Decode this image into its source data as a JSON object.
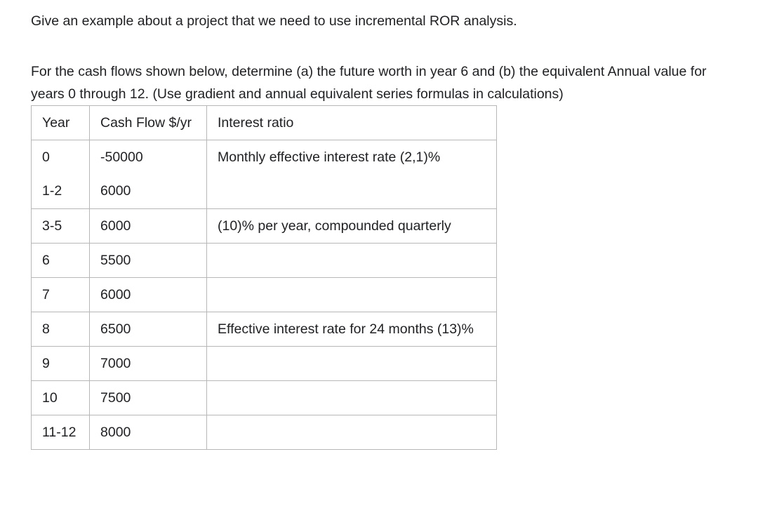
{
  "page": {
    "question_text": "Give an example about a project that we need to use incremental ROR analysis.",
    "instruction_lines": [
      "For the cash flows shown below, determine (a) the future worth in year 6 and (b) the equivalent Annual value for",
      "years 0 through 12. (Use gradient and annual equivalent series formulas in calculations)"
    ]
  },
  "colors": {
    "text": "#202124",
    "table_border": "#b7b7b7",
    "background": "#ffffff"
  },
  "table": {
    "columns": [
      "Year",
      "Cash Flow $/yr",
      "Interest ratio"
    ],
    "rows": [
      {
        "year_lines": [
          "0",
          "1-2"
        ],
        "cash_lines": [
          "-50000",
          "6000"
        ],
        "interest": "Monthly effective interest rate (2,1)%"
      },
      {
        "year_lines": [
          "3-5"
        ],
        "cash_lines": [
          "6000"
        ],
        "interest": "(10)% per year, compounded quarterly"
      },
      {
        "year_lines": [
          "6"
        ],
        "cash_lines": [
          "5500"
        ],
        "interest": ""
      },
      {
        "year_lines": [
          "7"
        ],
        "cash_lines": [
          "6000"
        ],
        "interest": ""
      },
      {
        "year_lines": [
          "8"
        ],
        "cash_lines": [
          "6500"
        ],
        "interest": "Effective interest rate for 24 months (13)%"
      },
      {
        "year_lines": [
          "9"
        ],
        "cash_lines": [
          "7000"
        ],
        "interest": ""
      },
      {
        "year_lines": [
          "10"
        ],
        "cash_lines": [
          "7500"
        ],
        "interest": ""
      },
      {
        "year_lines": [
          "11-12"
        ],
        "cash_lines": [
          "8000"
        ],
        "interest": ""
      }
    ]
  }
}
